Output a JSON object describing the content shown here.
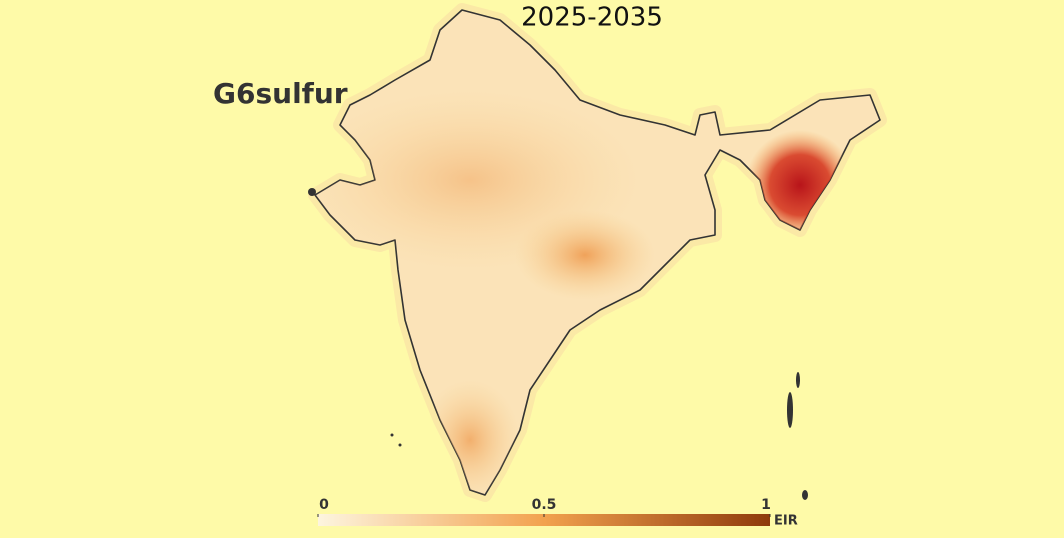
{
  "map": {
    "title": "2025-2035",
    "scenario": "G6sulfur"
  },
  "colorbar": {
    "label": "EIR",
    "lim": [
      0,
      1
    ],
    "ticks": [
      0,
      0.5,
      1
    ],
    "colors": [
      "#fdf5df",
      "#f2a24e",
      "#8e3a0c"
    ]
  }
}
